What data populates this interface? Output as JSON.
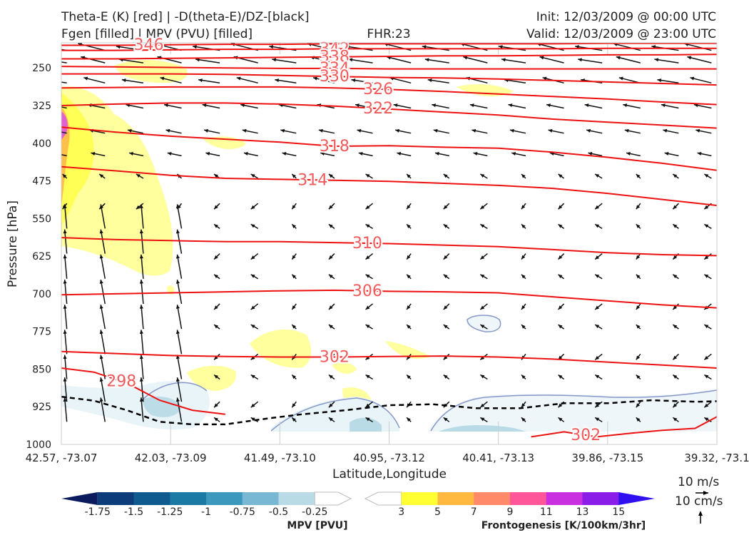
{
  "header": {
    "title_left_1": "Theta-E (K) [red] | -D(theta-E)/DZ-[black]",
    "title_left_2": "Fgen [filled] | MPV (PVU) [filled]",
    "title_center": "FHR:23",
    "title_right_1": "Init: 12/03/2009 @ 00:00 UTC",
    "title_right_2": "Valid: 12/03/2009 @ 23:00 UTC"
  },
  "chart_data": {
    "type": "cross-section",
    "xlabel": "Latitude,Longitude",
    "ylabel": "Pressure [hPa]",
    "x_ticks": [
      "42.57, -73.07",
      "42.03, -73.09",
      "41.49, -73.10",
      "40.95, -73.12",
      "40.41, -73.13",
      "39.86, -73.15",
      "39.32, -73.1"
    ],
    "y_ticks": [
      250,
      325,
      400,
      475,
      550,
      625,
      700,
      775,
      850,
      925,
      1000
    ],
    "ylim": [
      1000,
      200
    ],
    "xlim": [
      0,
      6
    ],
    "grid": true,
    "theta_e_contours": [
      {
        "label": "346",
        "x": [
          0,
          0.5,
          1,
          1.5,
          2,
          2.5,
          3,
          3.5,
          4,
          4.5,
          5,
          5.5,
          6
        ],
        "p": [
          205,
          205,
          204,
          203,
          203,
          202,
          202,
          202,
          202,
          202,
          201,
          201,
          201
        ]
      },
      {
        "label": "342",
        "x": [
          0,
          0.5,
          1,
          1.5,
          2,
          2.5,
          3,
          3.5,
          4,
          4.5,
          5,
          5.5,
          6
        ],
        "p": [
          215,
          215,
          214,
          213,
          213,
          212,
          212,
          212,
          212,
          212,
          211,
          211,
          211
        ]
      },
      {
        "label": "338",
        "x": [
          0,
          0.5,
          1,
          1.5,
          2,
          2.5,
          3,
          3.5,
          4,
          4.5,
          5,
          5.5,
          6
        ],
        "p": [
          232,
          232,
          231,
          230,
          229,
          228,
          227,
          226,
          226,
          225,
          224,
          224,
          223
        ]
      },
      {
        "label": "334",
        "x": [
          0,
          0.5,
          1,
          1.5,
          2,
          2.5,
          3,
          3.5,
          4,
          4.5,
          5,
          5.5,
          6
        ],
        "p": [
          247,
          248,
          249,
          250,
          251,
          251,
          252,
          252,
          252,
          252,
          252,
          252,
          252
        ]
      },
      {
        "label": "330",
        "x": [
          0,
          0.5,
          1,
          1.5,
          2,
          2.5,
          3,
          3.5,
          4,
          4.5,
          5,
          5.5,
          6
        ],
        "p": [
          262,
          262,
          262,
          263,
          265,
          267,
          269,
          270,
          272,
          275,
          278,
          281,
          284
        ]
      },
      {
        "label": "326",
        "x": [
          0,
          0.5,
          1,
          1.5,
          2,
          2.5,
          3,
          3.5,
          4,
          4.5,
          5,
          5.5,
          6
        ],
        "p": [
          290,
          289,
          288,
          288,
          288,
          290,
          293,
          297,
          302,
          307,
          312,
          318,
          323
        ]
      },
      {
        "label": "322",
        "x": [
          0,
          0.5,
          1,
          1.5,
          2,
          2.5,
          3,
          3.5,
          4,
          4.5,
          5,
          5.5,
          6
        ],
        "p": [
          325,
          322,
          320,
          320,
          322,
          326,
          332,
          338,
          344,
          352,
          358,
          364,
          370
        ]
      },
      {
        "label": "318",
        "x": [
          0,
          0.5,
          1,
          1.5,
          2,
          2.5,
          3,
          3.5,
          4,
          4.5,
          5,
          5.5,
          6
        ],
        "p": [
          368,
          378,
          386,
          392,
          398,
          406,
          405,
          408,
          410,
          418,
          428,
          440,
          454
        ]
      },
      {
        "label": "314",
        "x": [
          0,
          0.5,
          1,
          1.5,
          2,
          2.5,
          3,
          3.5,
          4,
          4.5,
          5,
          5.5,
          6
        ],
        "p": [
          447,
          455,
          464,
          470,
          472,
          474,
          476,
          480,
          484,
          490,
          500,
          512,
          524
        ]
      },
      {
        "label": "310",
        "x": [
          0,
          0.5,
          1,
          1.5,
          2,
          2.5,
          3,
          3.5,
          4,
          4.5,
          5,
          5.5,
          6
        ],
        "p": [
          588,
          592,
          594,
          596,
          596,
          598,
          600,
          603,
          606,
          612,
          618,
          622,
          624
        ]
      },
      {
        "label": "306",
        "x": [
          0,
          0.5,
          1,
          1.5,
          2,
          2.5,
          3,
          3.5,
          4,
          4.5,
          5,
          5.5,
          6
        ],
        "p": [
          702,
          700,
          698,
          696,
          694,
          693,
          695,
          696,
          698,
          706,
          714,
          722,
          728
        ]
      },
      {
        "label": "302",
        "x": [
          0,
          0.5,
          1,
          1.5,
          2,
          2.5,
          3,
          3.5,
          4,
          4.5,
          5,
          5.5,
          6
        ],
        "p": [
          815,
          819,
          823,
          825,
          826,
          826,
          825,
          824,
          826,
          830,
          836,
          842,
          848
        ]
      },
      {
        "label": "298",
        "x": [
          0,
          0.3,
          0.6,
          0.9,
          1.2,
          1.5
        ],
        "p": [
          848,
          856,
          878,
          912,
          932,
          940
        ]
      },
      {
        "label": "302",
        "x": [
          4.3,
          4.6,
          4.9,
          5.2,
          5.5,
          5.8,
          6
        ],
        "p": [
          985,
          975,
          985,
          978,
          972,
          968,
          945
        ]
      }
    ],
    "dthetae_dz_zero_contour": {
      "x": [
        0,
        0.3,
        0.6,
        0.9,
        1.2,
        1.5,
        1.9,
        2.2,
        2.6,
        3,
        3.4,
        3.8,
        4.2,
        4.6,
        5,
        5.4,
        5.8,
        6
      ],
      "p": [
        905,
        913,
        932,
        955,
        960,
        960,
        948,
        940,
        932,
        922,
        920,
        928,
        928,
        918,
        918,
        912,
        915,
        914
      ]
    },
    "mpv_levels": [
      -1.75,
      -1.5,
      -1.25,
      -1.0,
      -0.75,
      -0.5,
      -0.25
    ],
    "fgen_levels": [
      3,
      5,
      7,
      9,
      11,
      13,
      15
    ],
    "mpv_colorbar_label": "MPV [PVU]",
    "fgen_colorbar_label": "Frontogenesis [K/100km/3hr]",
    "vector_key_horizontal": "10 m/s",
    "vector_key_vertical": "10 cm/s",
    "colors": {
      "theta_e": "#ee1111",
      "dthetae": "#000000",
      "contour_label": "#f05a5a",
      "mpv": [
        "#0a1a5c",
        "#0d3c7a",
        "#0f5a8f",
        "#1a7aa3",
        "#3d98bd",
        "#79b8d3",
        "#b9dbe6",
        "#ffffff"
      ],
      "fgen": [
        "#ffffff",
        "#ffff33",
        "#ffb840",
        "#ff8a6a",
        "#ff5599",
        "#c830e0",
        "#8a1ee8",
        "#3010f0"
      ]
    }
  }
}
